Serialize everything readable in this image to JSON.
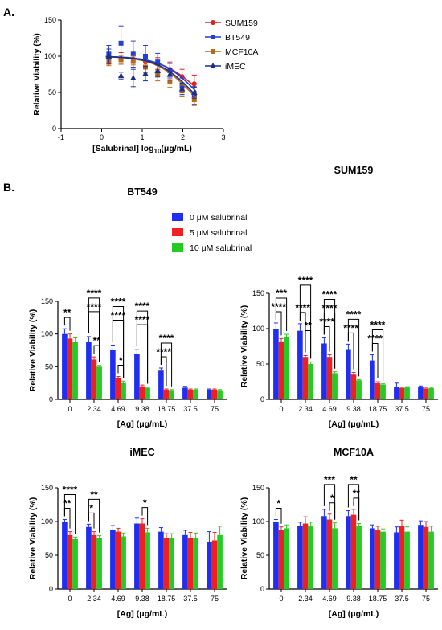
{
  "panel_labels": {
    "a": "A.",
    "b": "B."
  },
  "sig_strings": {
    "s1": "*",
    "s2": "**",
    "s3": "***",
    "s4": "****"
  },
  "chart_data": [
    {
      "id": "dose-response",
      "type": "scatter",
      "title": "",
      "xlabel_prefix": "[Salubrinal] log",
      "xlabel_sub": "10",
      "xlabel_suffix": "(μg/mL)",
      "ylabel": "Relative Viability (%)",
      "xlim": [
        -1,
        3
      ],
      "ylim": [
        0,
        150
      ],
      "xticks": [
        -1,
        0,
        1,
        2,
        3
      ],
      "yticks": [
        0,
        50,
        100,
        150
      ],
      "legend_position": "top-right",
      "series": [
        {
          "name": "SUM159",
          "color": "#e02020",
          "marker": "circle",
          "x": [
            0.176,
            0.477,
            0.778,
            1.079,
            1.38,
            1.681,
            1.982,
            2.283
          ],
          "y": [
            97,
            97,
            96,
            92,
            90,
            82,
            72,
            62
          ],
          "err": [
            8,
            8,
            6,
            8,
            8,
            10,
            10,
            12
          ],
          "fit": {
            "top": 100,
            "bottom": 0,
            "log_ic50": 2.45,
            "hill": 0.9
          }
        },
        {
          "name": "BT549",
          "color": "#1f3fd8",
          "marker": "square",
          "x": [
            0.176,
            0.477,
            0.778,
            1.079,
            1.38,
            1.681,
            1.982,
            2.283
          ],
          "y": [
            103,
            118,
            103,
            100,
            92,
            80,
            60,
            45
          ],
          "err": [
            12,
            24,
            18,
            15,
            12,
            10,
            10,
            12
          ],
          "fit": {
            "top": 100,
            "bottom": 0,
            "log_ic50": 2.35,
            "hill": 1.0
          }
        },
        {
          "name": "MCF10A",
          "color": "#b86a1a",
          "marker": "square",
          "x": [
            0.176,
            0.477,
            0.778,
            1.079,
            1.38,
            1.681,
            1.982,
            2.283
          ],
          "y": [
            93,
            95,
            94,
            85,
            74,
            65,
            52,
            40
          ],
          "err": [
            6,
            6,
            6,
            8,
            8,
            8,
            8,
            8
          ],
          "fit": {
            "top": 100,
            "bottom": 0,
            "log_ic50": 2.2,
            "hill": 1.0
          }
        },
        {
          "name": "iMEC",
          "color": "#1c2f88",
          "marker": "triangle",
          "x": [
            0.176,
            0.477,
            0.778,
            1.079,
            1.38,
            1.681,
            1.982,
            2.283
          ],
          "y": [
            100,
            73,
            70,
            76,
            80,
            75,
            55,
            50
          ],
          "err": [
            10,
            5,
            12,
            10,
            8,
            8,
            8,
            8
          ],
          "fit": {
            "top": 100,
            "bottom": 0,
            "log_ic50": 2.25,
            "hill": 1.0
          }
        }
      ]
    },
    {
      "id": "bt549-bars",
      "type": "bar",
      "title": "BT549",
      "xlabel": "[Ag] (μg/mL)",
      "ylabel": "Relative Viability (%)",
      "ylim": [
        0,
        150
      ],
      "yticks": [
        0,
        50,
        100,
        150
      ],
      "categories": [
        "0",
        "2.34",
        "4.69",
        "9.38",
        "18.75",
        "37.5",
        "75"
      ],
      "legend_position": "top-right",
      "series": [
        {
          "name": "0 μM salubrinal",
          "color": "#1f2ef0",
          "values": [
            100,
            88,
            75,
            70,
            44,
            18,
            15
          ],
          "err": [
            8,
            8,
            8,
            6,
            4,
            2,
            1
          ]
        },
        {
          "name": "5 μM salubrinal",
          "color": "#f02020",
          "values": [
            93,
            61,
            33,
            20,
            15,
            15,
            15
          ],
          "err": [
            7,
            4,
            2,
            2,
            1,
            1,
            1
          ]
        },
        {
          "name": "10 μM salubrinal",
          "color": "#22cc22",
          "values": [
            88,
            50,
            25,
            18,
            14,
            15,
            14
          ],
          "err": [
            6,
            2,
            3,
            1,
            1,
            1,
            1
          ]
        }
      ],
      "significance": [
        {
          "cat": 0,
          "from": 0,
          "to": 1,
          "label": "**",
          "level": 0
        },
        {
          "cat": 1,
          "from": 1,
          "to": 2,
          "label": "**",
          "level": 0
        },
        {
          "cat": 1,
          "from": 0,
          "to": 2,
          "label": "****",
          "level": 1
        },
        {
          "cat": 1,
          "from": 0,
          "to": 2,
          "label": "****",
          "level": 2
        },
        {
          "cat": 2,
          "from": 1,
          "to": 2,
          "label": "*",
          "level": 0
        },
        {
          "cat": 2,
          "from": 0,
          "to": 2,
          "label": "****",
          "level": 1
        },
        {
          "cat": 2,
          "from": 0,
          "to": 2,
          "label": "****",
          "level": 2
        },
        {
          "cat": 3,
          "from": 0,
          "to": 2,
          "label": "****",
          "level": 1
        },
        {
          "cat": 3,
          "from": 0,
          "to": 2,
          "label": "****",
          "level": 2
        },
        {
          "cat": 4,
          "from": 0,
          "to": 1,
          "label": "****",
          "level": 0
        },
        {
          "cat": 4,
          "from": 0,
          "to": 2,
          "label": "****",
          "level": 1
        }
      ]
    },
    {
      "id": "sum159-bars",
      "type": "bar",
      "title": "SUM159",
      "xlabel": "[Ag] (μg/mL)",
      "ylabel": "Relative Viability (%)",
      "ylim": [
        0,
        150
      ],
      "yticks": [
        0,
        50,
        100,
        150
      ],
      "categories": [
        "0",
        "2.34",
        "4.69",
        "9.38",
        "18.75",
        "37.5",
        "75"
      ],
      "series": [
        {
          "name": "0 μM salubrinal",
          "color": "#1f2ef0",
          "values": [
            100,
            97,
            79,
            71,
            55,
            18,
            17
          ],
          "err": [
            8,
            10,
            8,
            7,
            8,
            5,
            2
          ]
        },
        {
          "name": "5 μM salubrinal",
          "color": "#f02020",
          "values": [
            82,
            60,
            60,
            35,
            23,
            16,
            15
          ],
          "err": [
            4,
            2,
            3,
            3,
            2,
            1,
            1
          ]
        },
        {
          "name": "10 μM salubrinal",
          "color": "#22cc22",
          "values": [
            88,
            50,
            37,
            27,
            21,
            17,
            16
          ],
          "err": [
            4,
            3,
            2,
            1,
            1,
            1,
            1
          ]
        }
      ],
      "significance": [
        {
          "cat": 0,
          "from": 0,
          "to": 1,
          "label": "****",
          "level": 0
        },
        {
          "cat": 0,
          "from": 0,
          "to": 2,
          "label": "***",
          "level": 1
        },
        {
          "cat": 1,
          "from": 0,
          "to": 1,
          "label": "****",
          "level": 0
        },
        {
          "cat": 1,
          "from": 1,
          "to": 2,
          "label": "**",
          "level": 1
        },
        {
          "cat": 1,
          "from": 0,
          "to": 2,
          "label": "****",
          "level": 2
        },
        {
          "cat": 2,
          "from": 0,
          "to": 1,
          "label": "****",
          "level": 0
        },
        {
          "cat": 2,
          "from": 0,
          "to": 2,
          "label": "****",
          "level": 1
        },
        {
          "cat": 2,
          "from": 0,
          "to": 2,
          "label": "****",
          "level": 2
        },
        {
          "cat": 3,
          "from": 0,
          "to": 1,
          "label": "****",
          "level": 0
        },
        {
          "cat": 3,
          "from": 0,
          "to": 2,
          "label": "****",
          "level": 1
        },
        {
          "cat": 4,
          "from": 0,
          "to": 1,
          "label": "****",
          "level": 0
        },
        {
          "cat": 4,
          "from": 0,
          "to": 2,
          "label": "****",
          "level": 1
        }
      ]
    },
    {
      "id": "imec-bars",
      "type": "bar",
      "title": "iMEC",
      "xlabel": "[Ag] (μg/mL)",
      "ylabel": "Relative Viability (%)",
      "ylim": [
        0,
        150
      ],
      "yticks": [
        0,
        50,
        100,
        150
      ],
      "categories": [
        "0",
        "2.34",
        "4.69",
        "9.38",
        "18.75",
        "37.5",
        "75"
      ],
      "series": [
        {
          "name": "0 μM salubrinal",
          "color": "#1f2ef0",
          "values": [
            100,
            92,
            88,
            97,
            85,
            80,
            70
          ],
          "err": [
            3,
            4,
            6,
            8,
            6,
            7,
            15
          ]
        },
        {
          "name": "5 μM salubrinal",
          "color": "#f02020",
          "values": [
            80,
            80,
            85,
            97,
            76,
            76,
            72
          ],
          "err": [
            5,
            5,
            5,
            7,
            6,
            8,
            12
          ]
        },
        {
          "name": "10 μM salubrinal",
          "color": "#22cc22",
          "values": [
            74,
            75,
            78,
            84,
            75,
            75,
            80
          ],
          "err": [
            3,
            4,
            5,
            6,
            7,
            8,
            13
          ]
        }
      ],
      "significance": [
        {
          "cat": 0,
          "from": 0,
          "to": 1,
          "label": "**",
          "level": 0
        },
        {
          "cat": 0,
          "from": 0,
          "to": 2,
          "label": "****",
          "level": 1
        },
        {
          "cat": 1,
          "from": 0,
          "to": 1,
          "label": "*",
          "level": 0
        },
        {
          "cat": 1,
          "from": 0,
          "to": 2,
          "label": "**",
          "level": 1
        },
        {
          "cat": 3,
          "from": 1,
          "to": 2,
          "label": "*",
          "level": 0
        }
      ]
    },
    {
      "id": "mcf10a-bars",
      "type": "bar",
      "title": "MCF10A",
      "xlabel": "[Ag] (μg/mL)",
      "ylabel": "Relative Viability (%)",
      "ylim": [
        0,
        150
      ],
      "yticks": [
        0,
        50,
        100,
        150
      ],
      "categories": [
        "0",
        "2.34",
        "4.69",
        "9.38",
        "18.75",
        "37.5",
        "75"
      ],
      "series": [
        {
          "name": "0 μM salubrinal",
          "color": "#1f2ef0",
          "values": [
            100,
            93,
            108,
            108,
            90,
            84,
            95
          ],
          "err": [
            3,
            6,
            10,
            8,
            5,
            8,
            6
          ]
        },
        {
          "name": "5 μM salubrinal",
          "color": "#f02020",
          "values": [
            88,
            97,
            103,
            110,
            88,
            93,
            92
          ],
          "err": [
            4,
            10,
            8,
            8,
            5,
            9,
            8
          ]
        },
        {
          "name": "10 μM salubrinal",
          "color": "#22cc22",
          "values": [
            90,
            93,
            90,
            93,
            85,
            85,
            85
          ],
          "err": [
            5,
            6,
            8,
            4,
            4,
            7,
            8
          ]
        }
      ],
      "significance": [
        {
          "cat": 0,
          "from": 0,
          "to": 1,
          "label": "*",
          "level": 0
        },
        {
          "cat": 2,
          "from": 1,
          "to": 2,
          "label": "*",
          "level": 0
        },
        {
          "cat": 2,
          "from": 0,
          "to": 2,
          "label": "***",
          "level": 1
        },
        {
          "cat": 3,
          "from": 1,
          "to": 2,
          "label": "**",
          "level": 0
        },
        {
          "cat": 3,
          "from": 0,
          "to": 2,
          "label": "**",
          "level": 1
        }
      ]
    }
  ]
}
